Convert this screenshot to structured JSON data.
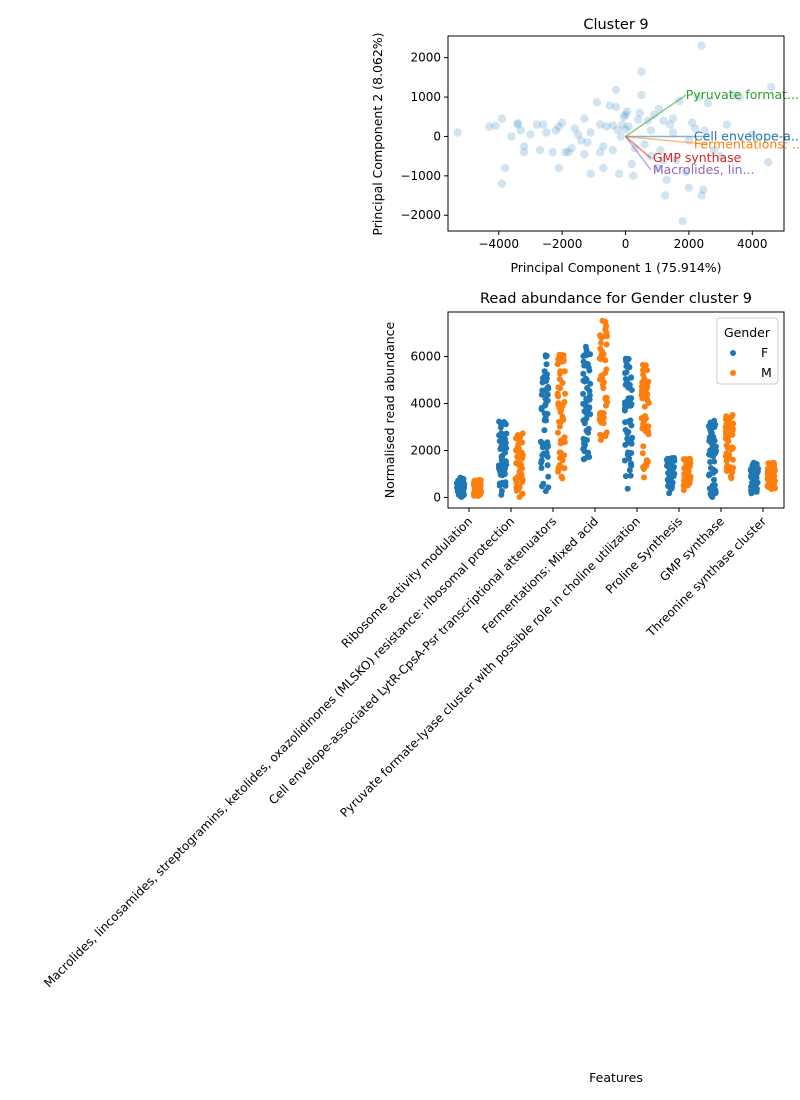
{
  "chart_data": [
    {
      "type": "scatter",
      "title": "Cluster 9",
      "xlabel": "Principal Component 1 (75.914%)",
      "ylabel": "Principal Component 2 (8.062%)",
      "xlim": [
        -5600,
        5000
      ],
      "ylim": [
        -2400,
        2550
      ],
      "xticks": [
        -4000,
        -2000,
        0,
        2000,
        4000
      ],
      "yticks": [
        -2000,
        -1000,
        0,
        1000,
        2000
      ],
      "xtick_labels": [
        "−4000",
        "−2000",
        "0",
        "2000",
        "4000"
      ],
      "ytick_labels": [
        "−2000",
        "−1000",
        "0",
        "1000",
        "2000"
      ],
      "grid": false,
      "point_color": "#1f77b4",
      "points": [
        [
          -5300,
          100
        ],
        [
          -4300,
          250
        ],
        [
          -4100,
          270
        ],
        [
          -3900,
          450
        ],
        [
          -3800,
          -800
        ],
        [
          -3900,
          -1200
        ],
        [
          -3600,
          0
        ],
        [
          -3400,
          300
        ],
        [
          -3400,
          340
        ],
        [
          -3300,
          150
        ],
        [
          -3200,
          -250
        ],
        [
          -3200,
          -400
        ],
        [
          -3000,
          50
        ],
        [
          -2800,
          300
        ],
        [
          -2700,
          -350
        ],
        [
          -2600,
          300
        ],
        [
          -2500,
          100
        ],
        [
          -2300,
          -400
        ],
        [
          -2200,
          150
        ],
        [
          -2100,
          250
        ],
        [
          -2100,
          -800
        ],
        [
          -2000,
          350
        ],
        [
          -1900,
          -400
        ],
        [
          -1800,
          -400
        ],
        [
          -1700,
          -300
        ],
        [
          -1600,
          200
        ],
        [
          -1500,
          50
        ],
        [
          -1400,
          -100
        ],
        [
          -1300,
          -450
        ],
        [
          -1300,
          450
        ],
        [
          -1200,
          -150
        ],
        [
          -1100,
          -950
        ],
        [
          -1100,
          100
        ],
        [
          -900,
          870
        ],
        [
          -800,
          300
        ],
        [
          -800,
          -400
        ],
        [
          -700,
          -800
        ],
        [
          -700,
          -250
        ],
        [
          -600,
          250
        ],
        [
          -500,
          780
        ],
        [
          -400,
          280
        ],
        [
          -400,
          -350
        ],
        [
          -300,
          1180
        ],
        [
          -300,
          750
        ],
        [
          -250,
          170
        ],
        [
          -200,
          -950
        ],
        [
          -150,
          0
        ],
        [
          -100,
          300
        ],
        [
          -50,
          500
        ],
        [
          0,
          550
        ],
        [
          0,
          180
        ],
        [
          50,
          630
        ],
        [
          100,
          250
        ],
        [
          200,
          -700
        ],
        [
          250,
          -1000
        ],
        [
          300,
          -300
        ],
        [
          400,
          430
        ],
        [
          450,
          600
        ],
        [
          500,
          1650
        ],
        [
          500,
          1050
        ],
        [
          600,
          -200
        ],
        [
          700,
          400
        ],
        [
          800,
          -500
        ],
        [
          900,
          550
        ],
        [
          1000,
          -800
        ],
        [
          1050,
          700
        ],
        [
          1100,
          -350
        ],
        [
          1200,
          400
        ],
        [
          1250,
          -1500
        ],
        [
          1300,
          -1100
        ],
        [
          1400,
          300
        ],
        [
          1500,
          450
        ],
        [
          1600,
          -600
        ],
        [
          1700,
          900
        ],
        [
          1800,
          -2150
        ],
        [
          1900,
          -900
        ],
        [
          2000,
          -1300
        ],
        [
          2100,
          350
        ],
        [
          2200,
          200
        ],
        [
          2300,
          1000
        ],
        [
          2400,
          2300
        ],
        [
          2400,
          -1500
        ],
        [
          2450,
          -1350
        ],
        [
          2500,
          150
        ],
        [
          2600,
          850
        ],
        [
          2800,
          -350
        ],
        [
          3000,
          -500
        ],
        [
          3200,
          300
        ],
        [
          3400,
          1050
        ],
        [
          3600,
          1000
        ],
        [
          4000,
          50
        ],
        [
          4500,
          -650
        ],
        [
          4600,
          1250
        ],
        [
          1500,
          100
        ],
        [
          800,
          150
        ],
        [
          2000,
          -100
        ],
        [
          1200,
          -600
        ]
      ],
      "vectors": [
        {
          "label": "Pyruvate format...",
          "color": "#2ca02c",
          "x": 1900,
          "y": 1050
        },
        {
          "label": "Cell envelope-a...",
          "color": "#1f77b4",
          "x": 2600,
          "y": 0
        },
        {
          "label": "Fermentations: ...",
          "color": "#ff7f0e",
          "x": 2600,
          "y": -200
        },
        {
          "label": "GMP synthase",
          "color": "#d62728",
          "x": 800,
          "y": -550
        },
        {
          "label": "Macrolides, lin...",
          "color": "#9467bd",
          "x": 800,
          "y": -850
        }
      ]
    },
    {
      "type": "strip",
      "title": "Read abundance for Gender cluster 9",
      "xlabel": "Features",
      "ylabel": "Normalised read abundance",
      "ylim": [
        -450,
        7900
      ],
      "yticks": [
        0,
        2000,
        4000,
        6000
      ],
      "legend": {
        "title": "Gender",
        "placement": "top-right",
        "entries": [
          "F",
          "M"
        ]
      },
      "categories": [
        "Ribosome activity modulation",
        "Macrolides, lincosamides, streptogramins, ketolides, oxazolidinones (MLSKO) resistance: ribosomal protection",
        "Cell envelope-associated LytR-CpsA-Psr transcriptional attenuators",
        "Fermentations: Mixed acid",
        "Pyruvate formate-lyase cluster with possible role in choline utilization",
        "Proline Synthesis",
        "GMP synthase",
        "Threonine synthase cluster"
      ],
      "series": [
        {
          "name": "F",
          "color": "#1f77b4",
          "ranges": [
            [
              0,
              850
            ],
            [
              50,
              3300
            ],
            [
              0,
              6150
            ],
            [
              1500,
              6450
            ],
            [
              300,
              6100
            ],
            [
              150,
              1700
            ],
            [
              0,
              3350
            ],
            [
              150,
              1500
            ]
          ]
        },
        {
          "name": "M",
          "color": "#ff7f0e",
          "ranges": [
            [
              50,
              750
            ],
            [
              0,
              2800
            ],
            [
              600,
              6250
            ],
            [
              2300,
              7600
            ],
            [
              700,
              5650
            ],
            [
              300,
              1650
            ],
            [
              600,
              3600
            ],
            [
              300,
              1500
            ]
          ]
        }
      ]
    }
  ]
}
